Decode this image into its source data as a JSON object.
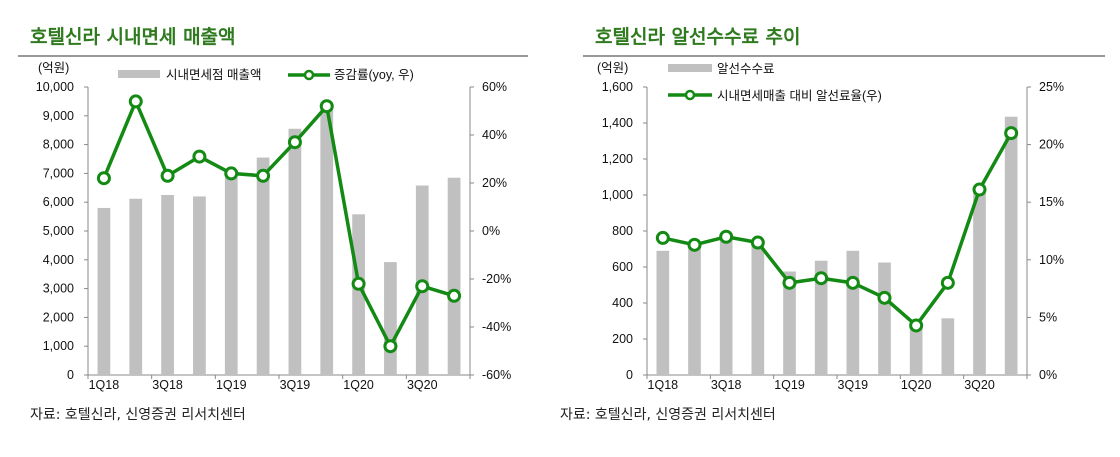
{
  "chart_data": [
    {
      "type": "bar+line",
      "title": "호텔신라 시내면세 매출액",
      "unit_label": "(억원)",
      "categories": [
        "1Q18",
        "2Q18",
        "3Q18",
        "4Q18",
        "1Q19",
        "2Q19",
        "3Q19",
        "4Q19",
        "1Q20",
        "2Q20",
        "3Q20",
        "4Q20"
      ],
      "x_tick_labels": [
        "1Q18",
        "",
        "3Q18",
        "",
        "1Q19",
        "",
        "3Q19",
        "",
        "1Q20",
        "",
        "3Q20",
        ""
      ],
      "series": [
        {
          "name": "시내면세점 매출액",
          "type": "bar",
          "axis": "left",
          "values": [
            5800,
            6120,
            6250,
            6200,
            6980,
            7550,
            8550,
            9250,
            5580,
            3920,
            6580,
            6850
          ]
        },
        {
          "name": "증감률(yoy, 우)",
          "type": "line",
          "axis": "right",
          "values": [
            22,
            54,
            23,
            31,
            24,
            23,
            37,
            52,
            -22,
            -48,
            -23,
            -27
          ]
        }
      ],
      "ylim_left": [
        0,
        10000
      ],
      "yticks_left": [
        "0",
        "1,000",
        "2,000",
        "3,000",
        "4,000",
        "5,000",
        "6,000",
        "7,000",
        "8,000",
        "9,000",
        "10,000"
      ],
      "ylim_right": [
        -60,
        60
      ],
      "yticks_right": [
        "-60%",
        "-40%",
        "-20%",
        "0%",
        "20%",
        "40%",
        "60%"
      ],
      "legend": "top",
      "source": "자료: 호텔신라, 신영증권 리서치센터"
    },
    {
      "type": "bar+line",
      "title": "호텔신라 알선수수료 추이",
      "unit_label": "(억원)",
      "categories": [
        "1Q18",
        "2Q18",
        "3Q18",
        "4Q18",
        "1Q19",
        "2Q19",
        "3Q19",
        "4Q19",
        "1Q20",
        "2Q20",
        "3Q20",
        "4Q20"
      ],
      "x_tick_labels": [
        "1Q18",
        "",
        "3Q18",
        "",
        "1Q19",
        "",
        "3Q19",
        "",
        "1Q20",
        "",
        "3Q20",
        ""
      ],
      "series": [
        {
          "name": "알선수수료",
          "type": "bar",
          "axis": "left",
          "values": [
            690,
            720,
            760,
            730,
            575,
            635,
            690,
            625,
            260,
            315,
            1050,
            1435
          ]
        },
        {
          "name": "시내면세매출 대비 알선료율(우)",
          "type": "line",
          "axis": "right",
          "values": [
            11.9,
            11.3,
            12.0,
            11.5,
            8.0,
            8.4,
            8.0,
            6.7,
            4.3,
            8.0,
            16.1,
            21.0
          ]
        }
      ],
      "ylim_left": [
        0,
        1600
      ],
      "yticks_left": [
        "0",
        "200",
        "400",
        "600",
        "800",
        "1,000",
        "1,200",
        "1,400",
        "1,600"
      ],
      "ylim_right": [
        0,
        25
      ],
      "yticks_right": [
        "0%",
        "5%",
        "10%",
        "15%",
        "20%",
        "25%"
      ],
      "legend": "top-left",
      "source": "자료: 호텔신라, 신영증권 리서치센터"
    }
  ],
  "colors": {
    "bar": "#c0c0c0",
    "line": "#138a13",
    "title": "#2f7a1f"
  }
}
